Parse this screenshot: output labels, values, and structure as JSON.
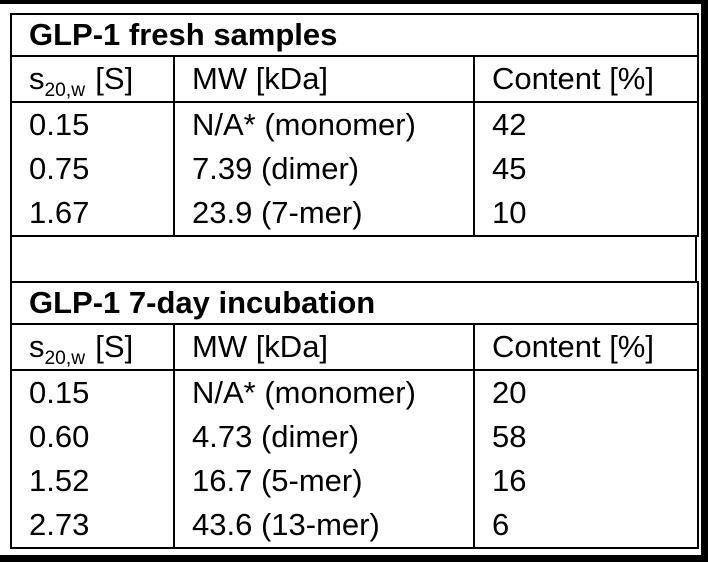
{
  "frame": {
    "border_color": "#000000",
    "background": "#ffffff",
    "text_color": "#000000"
  },
  "tables": [
    {
      "title": "GLP-1 fresh samples",
      "header": {
        "s_base": "s",
        "s_sub": "20,w",
        "s_unit": "[S]",
        "mw": "MW [kDa]",
        "content": "Content [%]"
      },
      "rows": [
        {
          "s": "0.15",
          "mw": "N/A* (monomer)",
          "content": "42"
        },
        {
          "s": "0.75",
          "mw": "7.39 (dimer)",
          "content": "45"
        },
        {
          "s": "1.67",
          "mw": "23.9 (7-mer)",
          "content": "10"
        }
      ]
    },
    {
      "title": "GLP-1 7-day incubation",
      "header": {
        "s_base": "s",
        "s_sub": "20,w",
        "s_unit": "[S]",
        "mw": "MW [kDa]",
        "content": "Content [%]"
      },
      "rows": [
        {
          "s": "0.15",
          "mw": "N/A* (monomer)",
          "content": "20"
        },
        {
          "s": "0.60",
          "mw": "4.73 (dimer)",
          "content": "58"
        },
        {
          "s": "1.52",
          "mw": "16.7 (5-mer)",
          "content": "16"
        },
        {
          "s": "2.73",
          "mw": "43.6 (13-mer)",
          "content": "6"
        }
      ]
    }
  ]
}
